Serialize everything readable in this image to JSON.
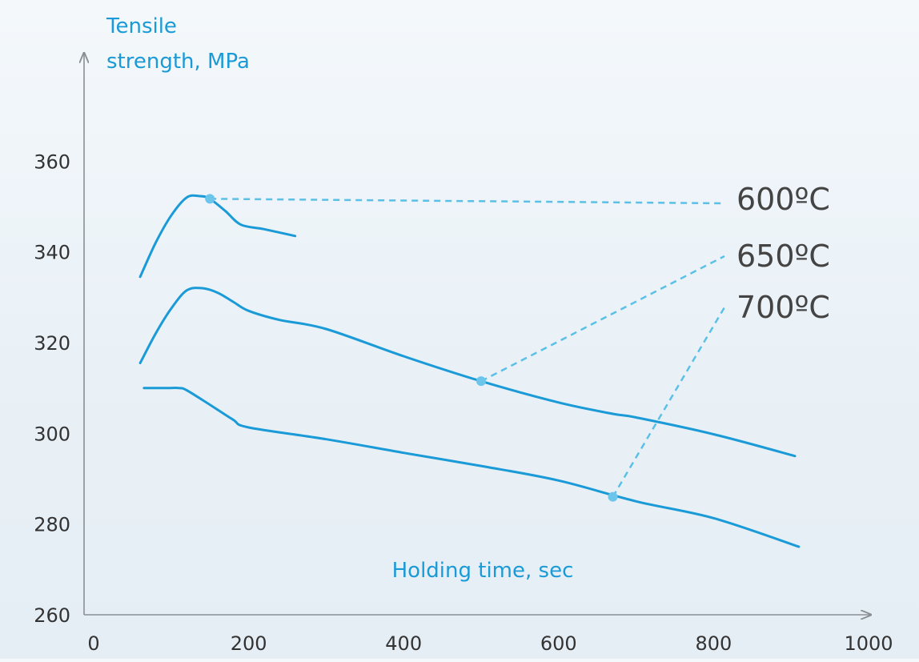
{
  "chart_data": {
    "type": "line",
    "ylabel_lines": [
      "Tensile",
      "strength, MPa"
    ],
    "xlabel": "Holding time, sec",
    "x_ticks": [
      "0",
      "200",
      "400",
      "600",
      "800",
      "1000"
    ],
    "y_ticks": [
      "260",
      "280",
      "300",
      "320",
      "340",
      "360"
    ],
    "xlim": [
      0,
      1000
    ],
    "ylim": [
      260,
      380
    ],
    "grid": false,
    "series": [
      {
        "name": "600ºC",
        "x": [
          60,
          80,
          100,
          120,
          137,
          150,
          170,
          190,
          220,
          260
        ],
        "y": [
          334.5,
          342,
          348,
          352,
          352.3,
          351.7,
          349,
          346,
          345,
          343.5
        ]
      },
      {
        "name": "650ºC",
        "x": [
          60,
          80,
          100,
          120,
          140,
          160,
          180,
          200,
          240,
          300,
          400,
          500,
          600,
          670,
          700,
          800,
          905
        ],
        "y": [
          315.5,
          322,
          327.5,
          331.5,
          332,
          331,
          329,
          327,
          325,
          323,
          317,
          311.5,
          306.8,
          304.3,
          303.5,
          299.8,
          295
        ]
      },
      {
        "name": "700ºC",
        "x": [
          65,
          95,
          110,
          120,
          150,
          180,
          200,
          300,
          400,
          500,
          600,
          700,
          800,
          910
        ],
        "y": [
          310,
          310,
          310,
          309.5,
          306.3,
          303,
          301.3,
          298.7,
          295.7,
          292.8,
          289.6,
          285,
          281.3,
          275
        ]
      }
    ],
    "annotations": [
      {
        "label": "600ºC",
        "series": "600ºC",
        "point": [
          150,
          351.7
        ]
      },
      {
        "label": "650ºC",
        "series": "650ºC",
        "point": [
          500,
          311.5
        ]
      },
      {
        "label": "700ºC",
        "series": "700ºC",
        "point": [
          670,
          286
        ]
      }
    ],
    "colors": {
      "line": "#1a9ad6",
      "leader": "#5bc0e6",
      "marker": "#6cc5ea",
      "axis": "#8a8f94",
      "tick_text": "#333333",
      "axis_label": "#1a9ad6",
      "annotation_text": "#444444"
    }
  }
}
